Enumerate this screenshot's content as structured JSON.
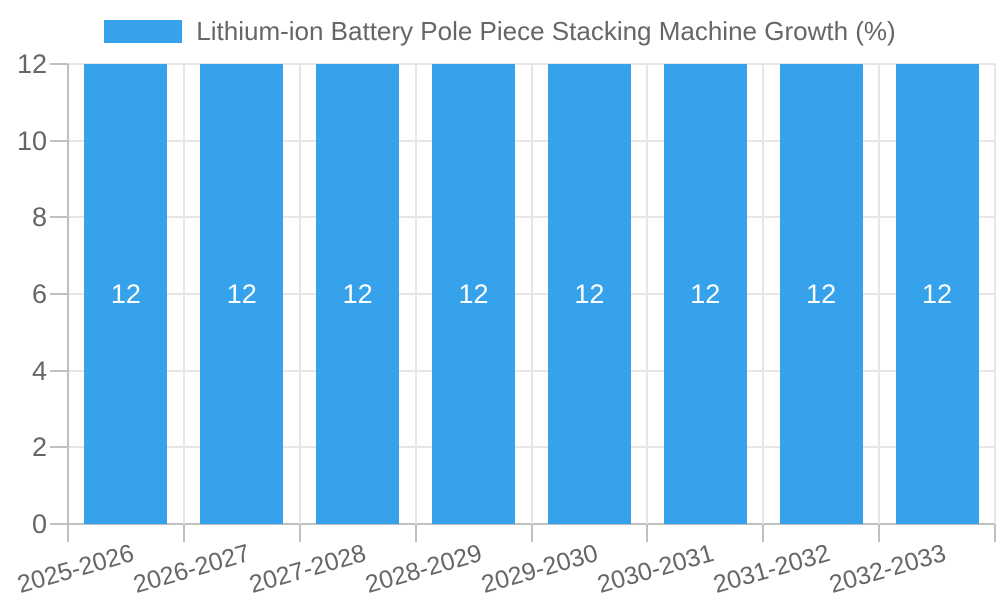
{
  "chart_data": {
    "type": "bar",
    "title": "Lithium-ion Battery Pole Piece Stacking Machine Growth (%)",
    "categories": [
      "2025-2026",
      "2026-2027",
      "2027-2028",
      "2028-2029",
      "2029-2030",
      "2030-2031",
      "2031-2032",
      "2032-2033"
    ],
    "values": [
      12,
      12,
      12,
      12,
      12,
      12,
      12,
      12
    ],
    "xlabel": "",
    "ylabel": "",
    "ylim": [
      0,
      12
    ],
    "yticks": [
      0,
      2,
      4,
      6,
      8,
      10,
      12
    ],
    "legend_position": "top",
    "grid": true,
    "bar_color": "#36a2eb",
    "bar_label_color": "#ffffff",
    "axis_text_color": "#666666",
    "grid_color": "#e6e6e6",
    "axis_line_color": "#bfbfbf"
  }
}
